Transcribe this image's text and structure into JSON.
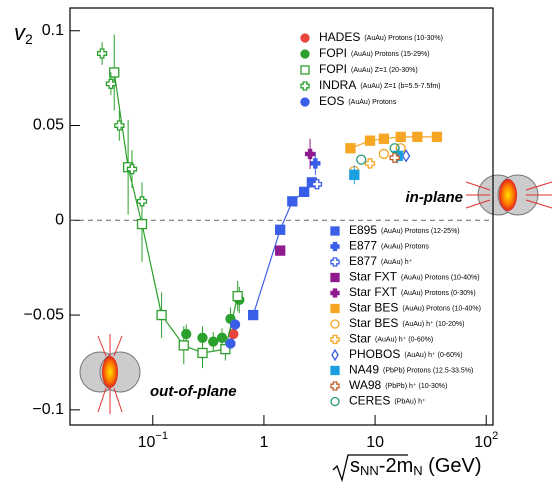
{
  "chart_data": {
    "type": "scatter",
    "ylabel": {
      "text": "v",
      "sub": "2"
    },
    "xlabel": {
      "parts": [
        "s",
        "NN",
        "-2m",
        "N",
        " (GeV)"
      ]
    },
    "annotations": [
      "in-plane",
      "out-of-plane"
    ],
    "log_x": true,
    "xlim": [
      0.018,
      115
    ],
    "ylim": [
      -0.108,
      0.112
    ],
    "xticks": [
      {
        "value": 0.1,
        "label": "10",
        "exp": "−1"
      },
      1,
      10,
      {
        "value": 100,
        "label": "10",
        "exp": "2"
      }
    ],
    "yticks": [
      0.1,
      0.05,
      0,
      {
        "value": -0.05,
        "label": "−0.05"
      },
      {
        "value": -0.1,
        "label": "−0.1"
      }
    ],
    "zero_line": true,
    "series": [
      {
        "name": "HADES",
        "detail": "(AuAu) Protons (10-30%)",
        "color": "#e8453c",
        "marker": "circle",
        "filled": true,
        "x": [
          0.53
        ],
        "values": [
          -0.06
        ]
      },
      {
        "name": "FOPI",
        "detail": "(AuAu) Protons (15-29%)",
        "color": "#2ca02c",
        "marker": "circle",
        "filled": true,
        "x": [
          0.2,
          0.28,
          0.35,
          0.42,
          0.5,
          0.6
        ],
        "values": [
          -0.06,
          -0.062,
          -0.064,
          -0.062,
          -0.052,
          -0.042
        ],
        "errors": [
          0.005,
          0.006,
          0.005,
          0.005,
          0.006,
          0.007
        ]
      },
      {
        "name": "FOPI",
        "detail": "(AuAu) Z=1 (20-30%)",
        "color": "#2ca02c",
        "marker": "square",
        "filled": false,
        "line": true,
        "x": [
          0.045,
          0.06,
          0.08,
          0.12,
          0.19,
          0.28,
          0.45,
          0.58
        ],
        "values": [
          0.078,
          0.028,
          -0.002,
          -0.05,
          -0.066,
          -0.07,
          -0.068,
          -0.04
        ],
        "errors": [
          0.02,
          0.025,
          0.02,
          0.012,
          0.01,
          0.008,
          0.006,
          0.008
        ]
      },
      {
        "name": "INDRA",
        "detail": "(AuAu) Z=1 (b=5.5-7.5fm)",
        "color": "#2ca02c",
        "marker": "plus",
        "filled": false,
        "x": [
          0.035,
          0.042,
          0.05,
          0.065,
          0.08
        ],
        "values": [
          0.088,
          0.072,
          0.05,
          0.027,
          0.01
        ],
        "errors": [
          0.006,
          0.006,
          0.008,
          0.01,
          0.01
        ]
      },
      {
        "name": "EOS",
        "detail": "(AuAu) Protons",
        "color": "#3b5ee8",
        "marker": "circle",
        "filled": true,
        "x": [
          0.5,
          0.55
        ],
        "values": [
          -0.065,
          -0.055
        ]
      },
      {
        "name": "E895",
        "detail": "(AuAu) Protons (12-25%)",
        "color": "#3b5ee8",
        "marker": "square",
        "filled": true,
        "line": true,
        "x": [
          0.8,
          1.4,
          1.8,
          2.3,
          2.7
        ],
        "values": [
          -0.05,
          -0.005,
          0.01,
          0.015,
          0.02
        ]
      },
      {
        "name": "E877",
        "detail": "(AuAu) Protons",
        "color": "#3b5ee8",
        "marker": "plus",
        "filled": true,
        "x": [
          2.9
        ],
        "values": [
          0.03
        ],
        "errors": [
          0.006
        ]
      },
      {
        "name": "E877",
        "detail": "(AuAu) h⁺",
        "color": "#3b5ee8",
        "marker": "plus",
        "filled": false,
        "x": [
          3.0
        ],
        "values": [
          0.019
        ]
      },
      {
        "name": "Star FXT",
        "detail": "(AuAu) Protons (10-40%)",
        "color": "#8e1a8e",
        "marker": "square",
        "filled": true,
        "x": [
          1.4
        ],
        "values": [
          -0.016
        ]
      },
      {
        "name": "Star FXT",
        "detail": "(AuAu) Protons (0-30%)",
        "color": "#8e1a8e",
        "marker": "plus",
        "filled": true,
        "x": [
          2.6
        ],
        "values": [
          0.035
        ],
        "errors": [
          0.008
        ]
      },
      {
        "name": "Star BES",
        "detail": "(AuAu) Protons (10-40%)",
        "color": "#f5a623",
        "marker": "square",
        "filled": true,
        "line": true,
        "x": [
          6,
          9,
          12,
          17,
          24,
          36
        ],
        "values": [
          0.038,
          0.042,
          0.043,
          0.044,
          0.044,
          0.044
        ]
      },
      {
        "name": "Star BES",
        "detail": "(AuAu) h⁺ (10-20%)",
        "color": "#f5a623",
        "marker": "circle",
        "filled": false,
        "x": [
          6.5,
          12,
          17
        ],
        "values": [
          0.026,
          0.035,
          0.038
        ]
      },
      {
        "name": "Star",
        "detail": "(AuAu) h⁺ (0-60%)",
        "color": "#f5a623",
        "marker": "plus",
        "filled": false,
        "x": [
          9
        ],
        "values": [
          0.03
        ]
      },
      {
        "name": "PHOBOS",
        "detail": "(AuAu) h⁺ (0-60%)",
        "color": "#3b5ee8",
        "marker": "diamond",
        "filled": false,
        "x": [
          19
        ],
        "values": [
          0.034
        ]
      },
      {
        "name": "NA49",
        "detail": "(PbPb) Protons (12.5-33.5%)",
        "color": "#1aa0e0",
        "marker": "square",
        "filled": true,
        "x": [
          6.5,
          16
        ],
        "values": [
          0.024,
          0.034
        ],
        "errors": [
          0.005,
          0.004
        ]
      },
      {
        "name": "WA98",
        "detail": "(PbPb) h⁺ (10-30%)",
        "color": "#c0602a",
        "marker": "plus",
        "filled": false,
        "x": [
          15
        ],
        "values": [
          0.033
        ]
      },
      {
        "name": "CERES",
        "detail": "(PbAu) h⁺",
        "color": "#2a9a7a",
        "marker": "circle",
        "filled": false,
        "x": [
          7.5,
          15
        ],
        "values": [
          0.032,
          0.038
        ]
      }
    ]
  }
}
